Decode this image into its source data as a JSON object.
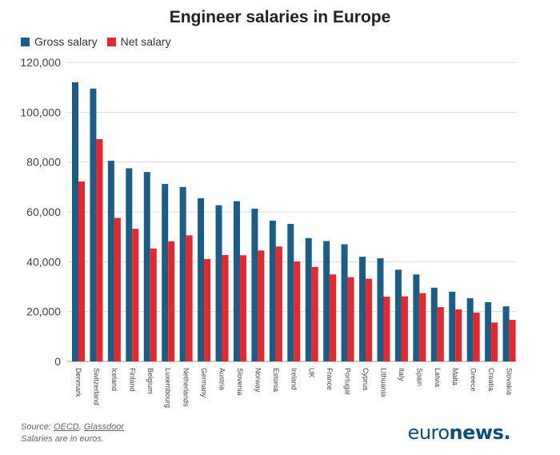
{
  "chart_data": {
    "type": "bar",
    "title": "Engineer salaries in Europe",
    "categories": [
      "Denmark",
      "Switzerland",
      "Iceland",
      "Finland",
      "Belgium",
      "Luxembourg",
      "Netherlands",
      "Germany",
      "Austria",
      "Slovenia",
      "Norway",
      "Estonia",
      "Ireland",
      "UK",
      "France",
      "Portugal",
      "Cyprus",
      "Lithuania",
      "Italy",
      "Spain",
      "Latvia",
      "Malta",
      "Greece",
      "Croatia",
      "Slovakia"
    ],
    "series": [
      {
        "name": "Gross salary",
        "color": "#1a5e88",
        "values": [
          112000,
          109500,
          80500,
          77500,
          76000,
          71200,
          70000,
          65500,
          62700,
          64300,
          61300,
          56500,
          55200,
          49500,
          48300,
          47000,
          42000,
          41400,
          36800,
          34900,
          29600,
          28000,
          25400,
          23800,
          22100
        ]
      },
      {
        "name": "Net salary",
        "color": "#e8262b",
        "values": [
          72200,
          89200,
          57600,
          53200,
          45300,
          48200,
          50600,
          41100,
          42700,
          42600,
          44500,
          46100,
          40100,
          37900,
          34900,
          33800,
          33200,
          26000,
          26100,
          27400,
          21800,
          20900,
          19600,
          15600,
          16700
        ]
      }
    ],
    "ylim": [
      0,
      120000
    ],
    "yticks": [
      "0",
      "20,000",
      "40,000",
      "60,000",
      "80,000",
      "100,000",
      "120,000"
    ],
    "ytick_values": [
      0,
      20000,
      40000,
      60000,
      80000,
      100000,
      120000
    ],
    "grid": true,
    "legend_position": "top-left",
    "xlabel": "",
    "ylabel": ""
  },
  "footer": {
    "source_prefix": "Source: ",
    "source_oecd": "OECD",
    "source_sep": ", ",
    "source_glassdoor": "Glassdoor",
    "note": "Salaries are in euros."
  },
  "brand": {
    "part1": "euro",
    "part2": "news",
    "dot": "."
  }
}
